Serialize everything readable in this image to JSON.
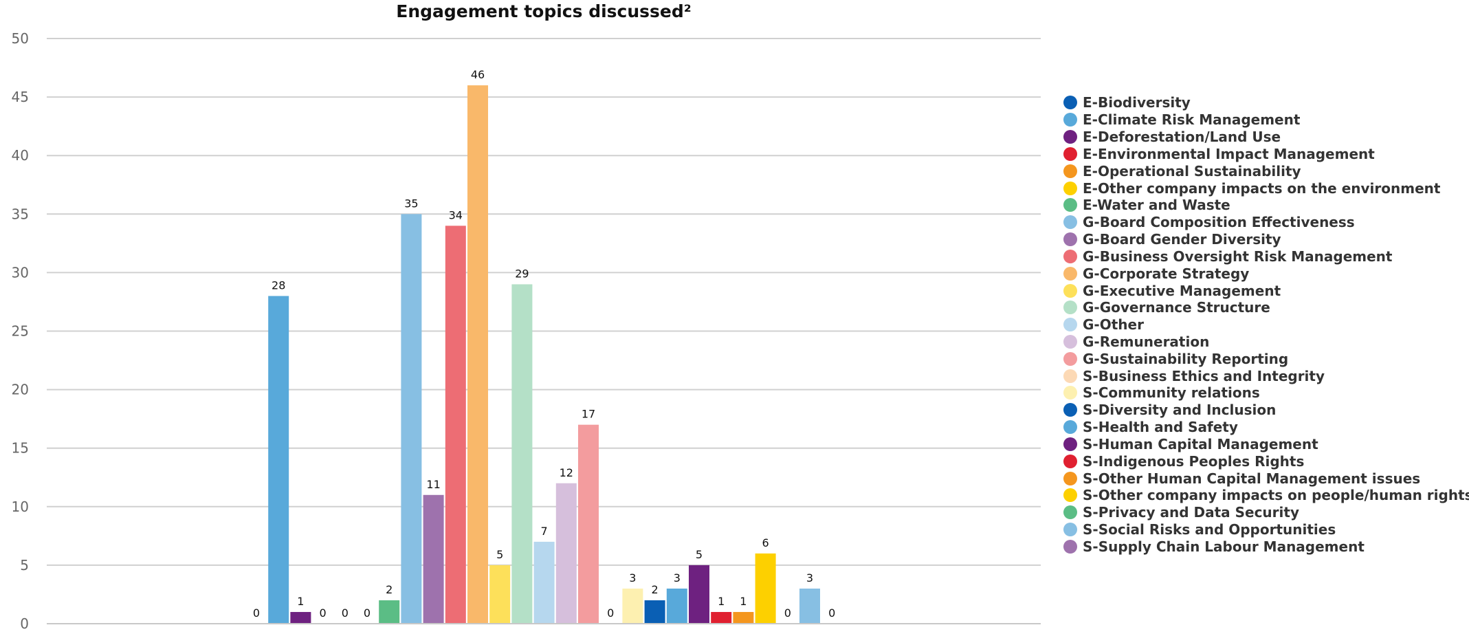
{
  "chart_data": {
    "type": "bar",
    "title": "Engagement topics discussed²",
    "xlabel": "",
    "ylabel": "",
    "ylim": [
      0,
      50
    ],
    "yticks": [
      0,
      5,
      10,
      15,
      20,
      25,
      30,
      35,
      40,
      45,
      50
    ],
    "grid": true,
    "legend_position": "right",
    "categories": [
      "E-Biodiversity",
      "E-Climate Risk Management",
      "E-Deforestation/Land Use",
      "E-Environmental Impact Management",
      "E-Operational Sustainability",
      "E-Other company impacts on the environment",
      "E-Water and Waste",
      "G-Board Composition Effectiveness",
      "G-Board Gender Diversity",
      "G-Business Oversight Risk Management",
      "G-Corporate Strategy",
      "G-Executive Management",
      "G-Governance Structure",
      "G-Other",
      "G-Remuneration",
      "G-Sustainability Reporting",
      "S-Business Ethics and Integrity",
      "S-Community relations",
      "S-Diversity and Inclusion",
      "S-Health and Safety",
      "S-Human Capital Management",
      "S-Indigenous Peoples Rights",
      "S-Other Human Capital Management issues",
      "S-Other company impacts on people/human rights",
      "S-Privacy and Data Security",
      "S-Social Risks and Opportunities",
      "S-Supply Chain Labour Management"
    ],
    "values": [
      0,
      28,
      1,
      0,
      0,
      0,
      2,
      35,
      11,
      34,
      46,
      5,
      29,
      7,
      12,
      17,
      0,
      3,
      2,
      3,
      5,
      1,
      1,
      6,
      0,
      3,
      0
    ],
    "colors": [
      "#0a5fb4",
      "#58a9da",
      "#6e2180",
      "#e02030",
      "#f4961e",
      "#fdd000",
      "#5bbd85",
      "#87bfe3",
      "#9e72ad",
      "#ed6d74",
      "#f9b86a",
      "#fde05a",
      "#b4e0c7",
      "#b6d7ee",
      "#d6bfdc",
      "#f39c9e",
      "#fcd9b5",
      "#fdf0b0",
      "#0a5fb4",
      "#58a9da",
      "#6e2180",
      "#e02030",
      "#f4961e",
      "#fdd000",
      "#5bbd85",
      "#87bfe3",
      "#9e72ad"
    ]
  }
}
